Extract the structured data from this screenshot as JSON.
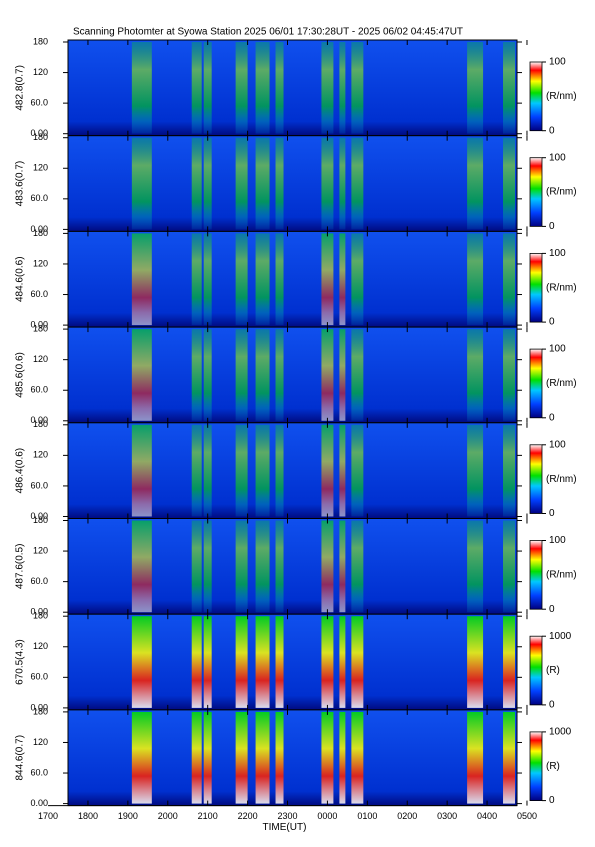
{
  "chart_data": [
    {
      "type": "heatmap",
      "title": "Scanning Photomter at Syowa Station  2025 06/01 17:30:28UT - 2025 06/02 04:45:47UT",
      "ylabel": "482.8(0.7)",
      "ylim": [
        0,
        180
      ],
      "yticks": [
        {
          "value": 0,
          "label": "0.00"
        },
        {
          "value": 60,
          "label": "60.0"
        },
        120,
        180
      ],
      "colorbar": {
        "label": "(R/nm)",
        "lim": [
          0,
          100
        ],
        "ticks": [
          0,
          100
        ]
      }
    },
    {
      "type": "heatmap",
      "ylabel": "483.6(0.7)",
      "ylim": [
        0,
        180
      ],
      "yticks": [
        {
          "value": 0,
          "label": "0.00"
        },
        {
          "value": 60,
          "label": "60.0"
        },
        120,
        180
      ],
      "colorbar": {
        "label": "(R/nm)",
        "lim": [
          0,
          100
        ],
        "ticks": [
          0,
          100
        ]
      }
    },
    {
      "type": "heatmap",
      "ylabel": "484.6(0.6)",
      "ylim": [
        0,
        180
      ],
      "yticks": [
        {
          "value": 0,
          "label": "0.00"
        },
        {
          "value": 60,
          "label": "60.0"
        },
        120,
        180
      ],
      "colorbar": {
        "label": "(R/nm)",
        "lim": [
          0,
          100
        ],
        "ticks": [
          0,
          100
        ]
      }
    },
    {
      "type": "heatmap",
      "ylabel": "485.6(0.6)",
      "ylim": [
        0,
        180
      ],
      "yticks": [
        {
          "value": 0,
          "label": "0.00"
        },
        {
          "value": 60,
          "label": "60.0"
        },
        120,
        180
      ],
      "colorbar": {
        "label": "(R/nm)",
        "lim": [
          0,
          100
        ],
        "ticks": [
          0,
          100
        ]
      }
    },
    {
      "type": "heatmap",
      "ylabel": "486.4(0.6)",
      "ylim": [
        0,
        180
      ],
      "yticks": [
        {
          "value": 0,
          "label": "0.00"
        },
        {
          "value": 60,
          "label": "60.0"
        },
        120,
        180
      ],
      "colorbar": {
        "label": "(R/nm)",
        "lim": [
          0,
          100
        ],
        "ticks": [
          0,
          100
        ]
      }
    },
    {
      "type": "heatmap",
      "ylabel": "487.6(0.5)",
      "ylim": [
        0,
        180
      ],
      "yticks": [
        {
          "value": 0,
          "label": "0.00"
        },
        {
          "value": 60,
          "label": "60.0"
        },
        120,
        180
      ],
      "colorbar": {
        "label": "(R/nm)",
        "lim": [
          0,
          100
        ],
        "ticks": [
          0,
          100
        ]
      }
    },
    {
      "type": "heatmap",
      "ylabel": "670.5(4.3)",
      "ylim": [
        0,
        180
      ],
      "yticks": [
        {
          "value": 0,
          "label": "0.00"
        },
        {
          "value": 60,
          "label": "60.0"
        },
        120,
        180
      ],
      "colorbar": {
        "label": "(R)",
        "lim": [
          0,
          1000
        ],
        "ticks": [
          0,
          1000
        ]
      }
    },
    {
      "type": "heatmap",
      "ylabel": "844.6(0.7)",
      "ylim": [
        0,
        180
      ],
      "yticks": [
        {
          "value": 0,
          "label": "0.00"
        },
        {
          "value": 60,
          "label": "60.0"
        },
        120,
        180
      ],
      "colorbar": {
        "label": "(R)",
        "lim": [
          0,
          1000
        ],
        "ticks": [
          0,
          1000
        ]
      },
      "xlabel": "TIME(UT)",
      "xlim": [
        17.5,
        28.75
      ],
      "xticks": [
        {
          "value": 17,
          "label": "1700"
        },
        {
          "value": 18,
          "label": "1800"
        },
        {
          "value": 19,
          "label": "1900"
        },
        {
          "value": 20,
          "label": "2000"
        },
        {
          "value": 21,
          "label": "2100"
        },
        {
          "value": 22,
          "label": "2200"
        },
        {
          "value": 23,
          "label": "2300"
        },
        {
          "value": 24,
          "label": "0000"
        },
        {
          "value": 25,
          "label": "0100"
        },
        {
          "value": 26,
          "label": "0200"
        },
        {
          "value": 27,
          "label": "0300"
        },
        {
          "value": 28,
          "label": "0400"
        },
        {
          "value": 29,
          "label": "0500"
        }
      ]
    }
  ]
}
